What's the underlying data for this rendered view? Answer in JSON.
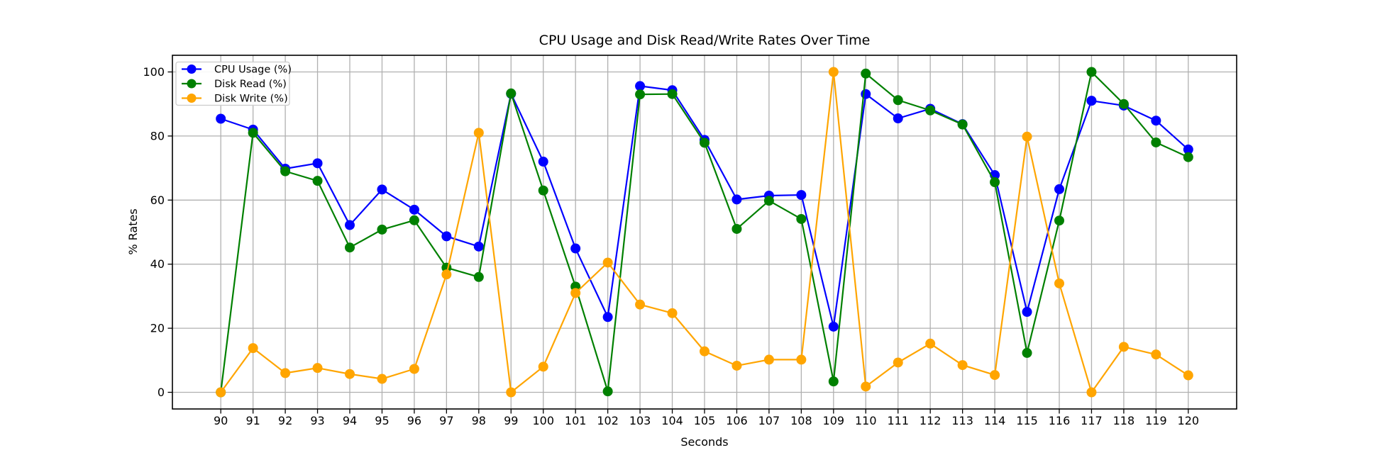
{
  "chart_data": {
    "type": "line",
    "title": "CPU Usage and Disk Read/Write Rates Over Time",
    "xlabel": "Seconds",
    "ylabel": "% Rates",
    "x": [
      90,
      91,
      92,
      93,
      94,
      95,
      96,
      97,
      98,
      99,
      100,
      101,
      102,
      103,
      104,
      105,
      106,
      107,
      108,
      109,
      110,
      111,
      112,
      113,
      114,
      115,
      116,
      117,
      118,
      119,
      120
    ],
    "series": [
      {
        "name": "CPU Usage (%)",
        "color": "#0000ff",
        "values": [
          85.4,
          82.0,
          69.8,
          71.5,
          52.2,
          63.3,
          57.0,
          48.7,
          45.5,
          93.2,
          72.0,
          44.9,
          23.5,
          95.6,
          94.3,
          78.8,
          60.2,
          61.4,
          61.6,
          20.5,
          93.1,
          85.5,
          88.5,
          83.7,
          67.8,
          25.1,
          63.4,
          91.0,
          89.5,
          84.8,
          75.8
        ]
      },
      {
        "name": "Disk Read (%)",
        "color": "#008000",
        "values": [
          0.0,
          81.0,
          69.0,
          66.0,
          45.2,
          50.8,
          53.7,
          38.9,
          36.0,
          93.3,
          63.0,
          33.0,
          0.3,
          93.0,
          93.1,
          77.9,
          51.0,
          59.8,
          54.1,
          3.4,
          99.5,
          91.2,
          88.0,
          83.6,
          65.6,
          12.3,
          53.6,
          100.0,
          90.0,
          78.0,
          73.4
        ]
      },
      {
        "name": "Disk Write (%)",
        "color": "#ffa500",
        "values": [
          0.0,
          13.8,
          6.0,
          7.6,
          5.7,
          4.2,
          7.3,
          36.8,
          81.0,
          0.0,
          8.0,
          31.0,
          40.5,
          27.4,
          24.7,
          12.8,
          8.3,
          10.2,
          10.2,
          100.0,
          1.8,
          9.3,
          15.2,
          8.5,
          5.4,
          79.8,
          34.0,
          0.0,
          14.2,
          11.8,
          5.3
        ]
      }
    ],
    "xlim": [
      88.5,
      121.5
    ],
    "ylim": [
      -5.2,
      105.2
    ],
    "xticks": [
      90,
      91,
      92,
      93,
      94,
      95,
      96,
      97,
      98,
      99,
      100,
      101,
      102,
      103,
      104,
      105,
      106,
      107,
      108,
      109,
      110,
      111,
      112,
      113,
      114,
      115,
      116,
      117,
      118,
      119,
      120
    ],
    "yticks": [
      0,
      20,
      40,
      60,
      80,
      100
    ],
    "grid": true,
    "grid_color": "#b0b0b0",
    "spine_color": "#000000",
    "legend_position": "upper left",
    "marker": "circle"
  }
}
